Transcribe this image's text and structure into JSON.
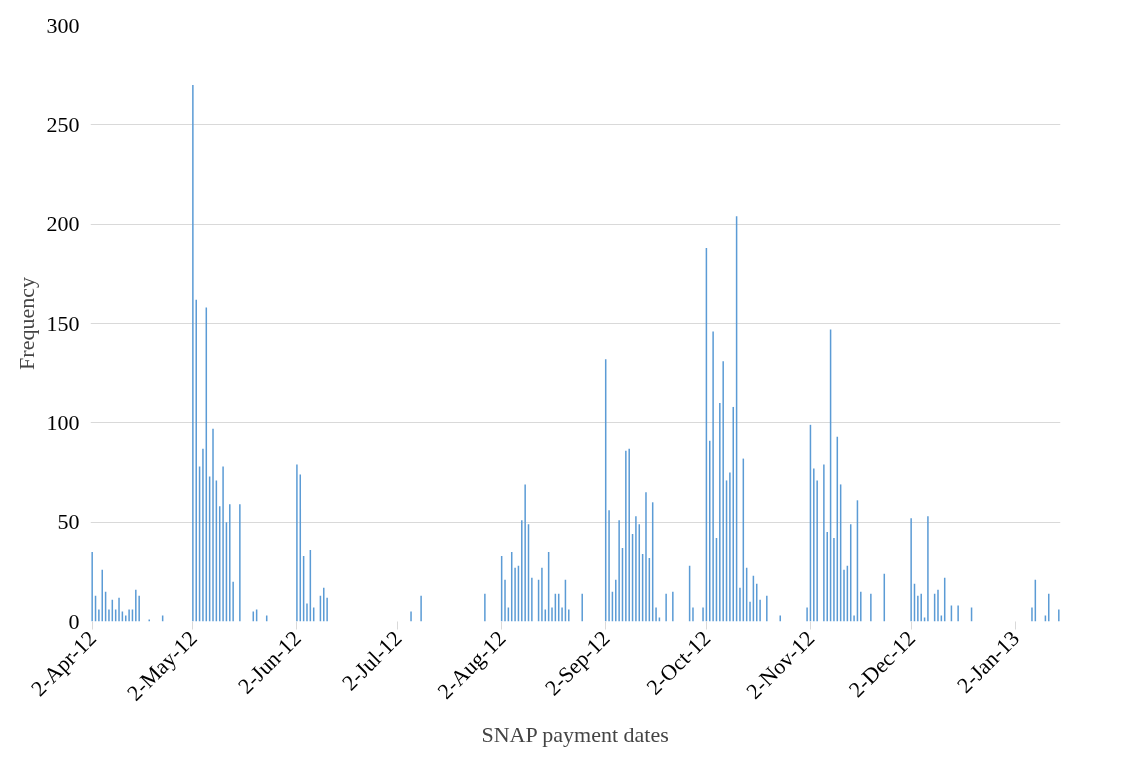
{
  "chart_data": {
    "type": "bar",
    "xlabel": "SNAP payment dates",
    "ylabel": "Frequency",
    "color": "#5b9bd5",
    "grid": "y",
    "x": [
      "2012-04-02",
      "2012-04-03",
      "2012-04-04",
      "2012-04-05",
      "2012-04-06",
      "2012-04-07",
      "2012-04-08",
      "2012-04-09",
      "2012-04-10",
      "2012-04-11",
      "2012-04-12",
      "2012-04-13",
      "2012-04-14",
      "2012-04-15",
      "2012-04-16",
      "2012-04-19",
      "2012-04-23",
      "2012-05-02",
      "2012-05-03",
      "2012-05-04",
      "2012-05-05",
      "2012-05-06",
      "2012-05-07",
      "2012-05-08",
      "2012-05-09",
      "2012-05-10",
      "2012-05-11",
      "2012-05-12",
      "2012-05-13",
      "2012-05-14",
      "2012-05-16",
      "2012-05-20",
      "2012-05-21",
      "2012-05-24",
      "2012-06-02",
      "2012-06-03",
      "2012-06-04",
      "2012-06-05",
      "2012-06-06",
      "2012-06-07",
      "2012-06-09",
      "2012-06-10",
      "2012-06-11",
      "2012-07-06",
      "2012-07-09",
      "2012-07-28",
      "2012-08-02",
      "2012-08-03",
      "2012-08-04",
      "2012-08-05",
      "2012-08-06",
      "2012-08-07",
      "2012-08-08",
      "2012-08-09",
      "2012-08-10",
      "2012-08-11",
      "2012-08-13",
      "2012-08-14",
      "2012-08-15",
      "2012-08-16",
      "2012-08-17",
      "2012-08-18",
      "2012-08-19",
      "2012-08-20",
      "2012-08-21",
      "2012-08-22",
      "2012-08-26",
      "2012-09-02",
      "2012-09-03",
      "2012-09-04",
      "2012-09-05",
      "2012-09-06",
      "2012-09-07",
      "2012-09-08",
      "2012-09-09",
      "2012-09-10",
      "2012-09-11",
      "2012-09-12",
      "2012-09-13",
      "2012-09-14",
      "2012-09-15",
      "2012-09-16",
      "2012-09-17",
      "2012-09-18",
      "2012-09-20",
      "2012-09-22",
      "2012-09-27",
      "2012-09-28",
      "2012-10-01",
      "2012-10-02",
      "2012-10-03",
      "2012-10-04",
      "2012-10-05",
      "2012-10-06",
      "2012-10-07",
      "2012-10-08",
      "2012-10-09",
      "2012-10-10",
      "2012-10-11",
      "2012-10-12",
      "2012-10-13",
      "2012-10-14",
      "2012-10-15",
      "2012-10-16",
      "2012-10-17",
      "2012-10-18",
      "2012-10-20",
      "2012-10-24",
      "2012-11-01",
      "2012-11-02",
      "2012-11-03",
      "2012-11-04",
      "2012-11-06",
      "2012-11-07",
      "2012-11-08",
      "2012-11-09",
      "2012-11-10",
      "2012-11-11",
      "2012-11-12",
      "2012-11-13",
      "2012-11-14",
      "2012-11-15",
      "2012-11-16",
      "2012-11-17",
      "2012-11-20",
      "2012-11-24",
      "2012-12-02",
      "2012-12-03",
      "2012-12-04",
      "2012-12-05",
      "2012-12-06",
      "2012-12-07",
      "2012-12-09",
      "2012-12-10",
      "2012-12-11",
      "2012-12-12",
      "2012-12-14",
      "2012-12-16",
      "2012-12-20",
      "2013-01-07",
      "2013-01-08",
      "2013-01-11",
      "2013-01-12",
      "2013-01-15"
    ],
    "values": [
      35,
      13,
      6,
      26,
      15,
      6,
      11,
      6,
      12,
      5,
      3,
      6,
      6,
      16,
      13,
      1,
      3,
      270,
      162,
      78,
      87,
      158,
      73,
      97,
      71,
      58,
      78,
      50,
      59,
      20,
      59,
      5,
      6,
      3,
      79,
      74,
      33,
      9,
      36,
      7,
      13,
      17,
      12,
      5,
      13,
      14,
      33,
      21,
      7,
      35,
      27,
      28,
      51,
      69,
      49,
      22,
      21,
      27,
      6,
      35,
      7,
      14,
      14,
      7,
      21,
      6,
      14,
      132,
      56,
      15,
      21,
      51,
      37,
      86,
      87,
      44,
      53,
      49,
      34,
      65,
      32,
      60,
      7,
      2,
      14,
      15,
      28,
      7,
      7,
      188,
      91,
      146,
      42,
      110,
      131,
      71,
      75,
      108,
      204,
      17,
      82,
      27,
      10,
      23,
      19,
      11,
      13,
      3,
      7,
      99,
      77,
      71,
      79,
      45,
      147,
      42,
      93,
      69,
      26,
      28,
      49,
      3,
      61,
      15,
      14,
      24,
      52,
      19,
      13,
      14,
      2,
      53,
      14,
      16,
      3,
      22,
      8,
      8,
      7,
      7,
      21,
      3,
      14,
      6
    ],
    "xlim": [
      "2012-04-01T12:00",
      "2013-01-15T12:00"
    ],
    "xticks": [
      {
        "value": "2012-04-02",
        "label": "2-Apr-12"
      },
      {
        "value": "2012-05-02",
        "label": "2-May-12"
      },
      {
        "value": "2012-06-02",
        "label": "2-Jun-12"
      },
      {
        "value": "2012-07-02",
        "label": "2-Jul-12"
      },
      {
        "value": "2012-08-02",
        "label": "2-Aug-12"
      },
      {
        "value": "2012-09-02",
        "label": "2-Sep-12"
      },
      {
        "value": "2012-10-02",
        "label": "2-Oct-12"
      },
      {
        "value": "2012-11-02",
        "label": "2-Nov-12"
      },
      {
        "value": "2012-12-02",
        "label": "2-Dec-12"
      },
      {
        "value": "2013-01-02",
        "label": "2-Jan-13"
      }
    ],
    "ylim": [
      0,
      300
    ],
    "yticks": [
      0,
      50,
      100,
      150,
      200,
      250,
      300
    ]
  }
}
